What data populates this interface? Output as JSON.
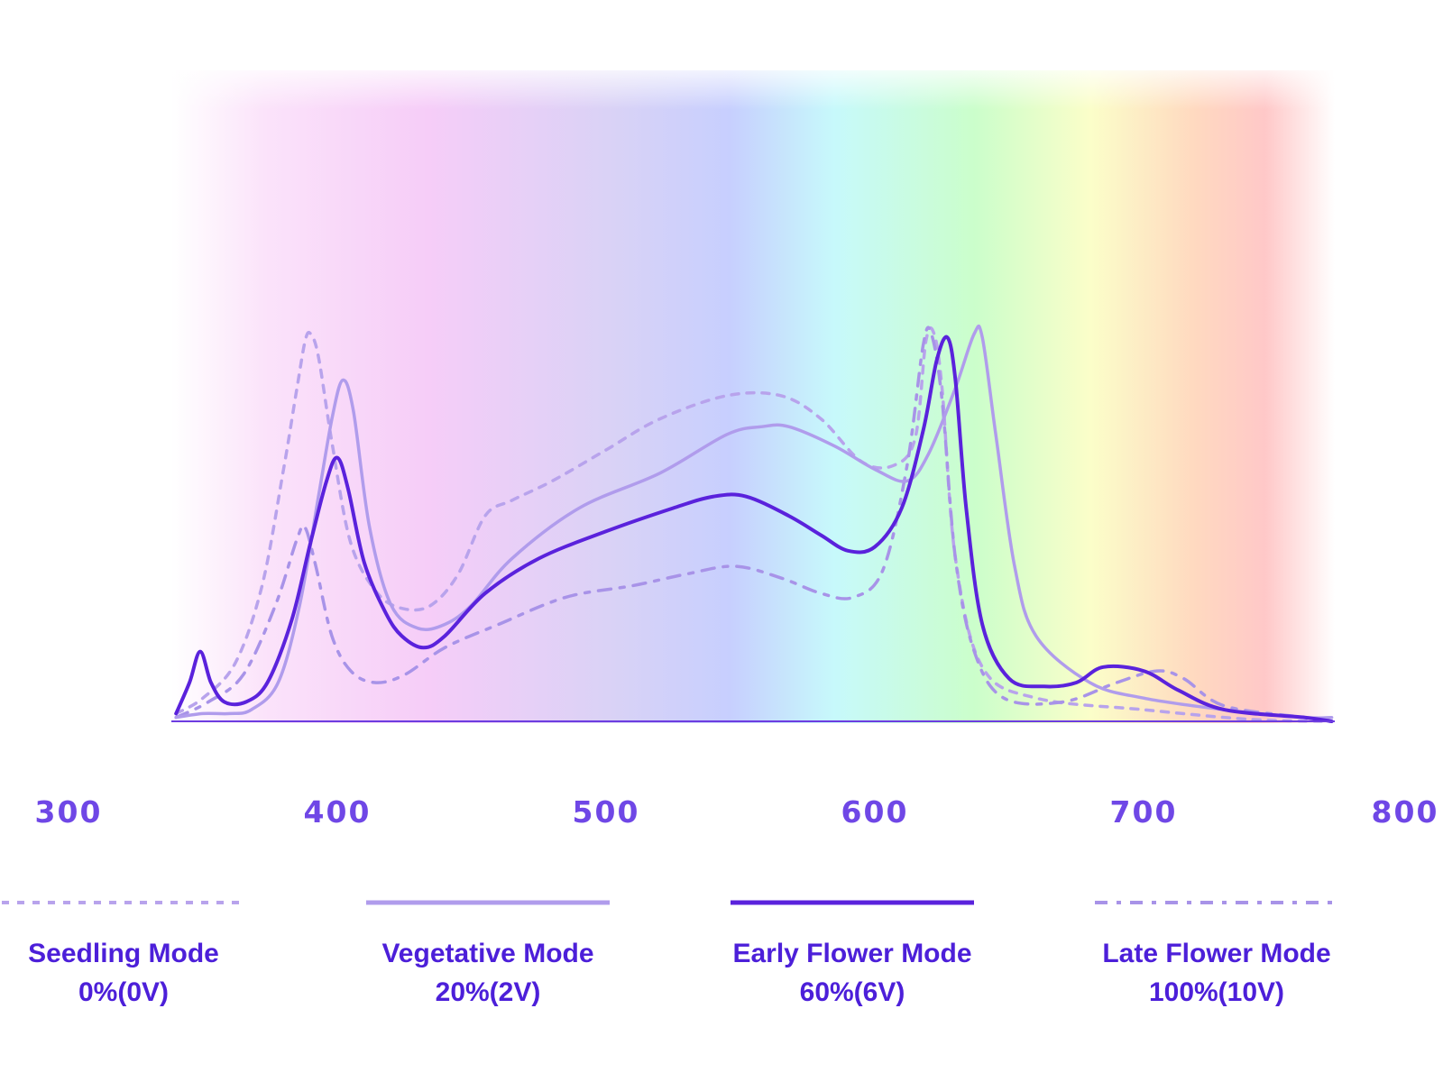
{
  "chart_data": {
    "type": "line",
    "title": "",
    "xlabel": "",
    "ylabel": "",
    "xlim": [
      300,
      800
    ],
    "ylim": [
      0,
      1.0
    ],
    "grid": false,
    "legend_position": "bottom",
    "x_ticks": [
      "300",
      "400",
      "500",
      "600",
      "700",
      "800"
    ],
    "series": [
      {
        "name": "Seedling Mode",
        "level": "0%(0V)",
        "color": "#b8a3ec",
        "style": "dotted",
        "points": [
          [
            340,
            0.02
          ],
          [
            350,
            0.06
          ],
          [
            362,
            0.15
          ],
          [
            372,
            0.35
          ],
          [
            380,
            0.65
          ],
          [
            385,
            0.86
          ],
          [
            388,
            0.98
          ],
          [
            390,
            1.0
          ],
          [
            393,
            0.94
          ],
          [
            398,
            0.72
          ],
          [
            405,
            0.46
          ],
          [
            415,
            0.33
          ],
          [
            425,
            0.29
          ],
          [
            435,
            0.3
          ],
          [
            445,
            0.38
          ],
          [
            455,
            0.53
          ],
          [
            465,
            0.57
          ],
          [
            480,
            0.62
          ],
          [
            500,
            0.7
          ],
          [
            520,
            0.78
          ],
          [
            545,
            0.84
          ],
          [
            565,
            0.84
          ],
          [
            580,
            0.78
          ],
          [
            595,
            0.67
          ],
          [
            607,
            0.66
          ],
          [
            615,
            0.73
          ],
          [
            619,
            0.98
          ],
          [
            622,
            1.0
          ],
          [
            625,
            0.86
          ],
          [
            630,
            0.42
          ],
          [
            640,
            0.14
          ],
          [
            660,
            0.06
          ],
          [
            700,
            0.03
          ],
          [
            740,
            0.005
          ],
          [
            770,
            0.0
          ]
        ]
      },
      {
        "name": "Vegetative Mode",
        "level": "20%(2V)",
        "color": "#b09cec",
        "style": "solid",
        "points": [
          [
            340,
            0.01
          ],
          [
            350,
            0.02
          ],
          [
            360,
            0.02
          ],
          [
            368,
            0.03
          ],
          [
            378,
            0.1
          ],
          [
            386,
            0.3
          ],
          [
            393,
            0.58
          ],
          [
            398,
            0.78
          ],
          [
            402,
            0.88
          ],
          [
            406,
            0.8
          ],
          [
            412,
            0.5
          ],
          [
            420,
            0.3
          ],
          [
            430,
            0.24
          ],
          [
            440,
            0.25
          ],
          [
            450,
            0.3
          ],
          [
            465,
            0.42
          ],
          [
            490,
            0.55
          ],
          [
            520,
            0.64
          ],
          [
            545,
            0.74
          ],
          [
            558,
            0.76
          ],
          [
            568,
            0.76
          ],
          [
            585,
            0.71
          ],
          [
            600,
            0.65
          ],
          [
            612,
            0.62
          ],
          [
            620,
            0.69
          ],
          [
            630,
            0.86
          ],
          [
            637,
            1.0
          ],
          [
            640,
            0.99
          ],
          [
            645,
            0.74
          ],
          [
            652,
            0.4
          ],
          [
            660,
            0.22
          ],
          [
            680,
            0.1
          ],
          [
            700,
            0.06
          ],
          [
            730,
            0.03
          ],
          [
            760,
            0.01
          ],
          [
            770,
            0.01
          ]
        ]
      },
      {
        "name": "Early Flower Mode",
        "level": "60%(6V)",
        "color": "#5a22dc",
        "style": "solid",
        "points": [
          [
            340,
            0.02
          ],
          [
            345,
            0.1
          ],
          [
            349,
            0.18
          ],
          [
            353,
            0.1
          ],
          [
            358,
            0.05
          ],
          [
            366,
            0.05
          ],
          [
            374,
            0.1
          ],
          [
            383,
            0.26
          ],
          [
            390,
            0.46
          ],
          [
            396,
            0.62
          ],
          [
            400,
            0.68
          ],
          [
            404,
            0.6
          ],
          [
            410,
            0.41
          ],
          [
            418,
            0.28
          ],
          [
            424,
            0.22
          ],
          [
            432,
            0.19
          ],
          [
            440,
            0.22
          ],
          [
            455,
            0.33
          ],
          [
            475,
            0.42
          ],
          [
            500,
            0.49
          ],
          [
            525,
            0.55
          ],
          [
            540,
            0.58
          ],
          [
            552,
            0.58
          ],
          [
            568,
            0.53
          ],
          [
            580,
            0.48
          ],
          [
            590,
            0.44
          ],
          [
            600,
            0.45
          ],
          [
            610,
            0.55
          ],
          [
            618,
            0.75
          ],
          [
            623,
            0.93
          ],
          [
            627,
            0.99
          ],
          [
            630,
            0.88
          ],
          [
            634,
            0.55
          ],
          [
            640,
            0.25
          ],
          [
            650,
            0.11
          ],
          [
            663,
            0.09
          ],
          [
            675,
            0.1
          ],
          [
            685,
            0.14
          ],
          [
            700,
            0.13
          ],
          [
            713,
            0.08
          ],
          [
            730,
            0.03
          ],
          [
            760,
            0.01
          ],
          [
            770,
            0.0
          ]
        ]
      },
      {
        "name": "Late Flower Mode",
        "level": "100%(10V)",
        "color": "#a893e8",
        "style": "dashdot",
        "points": [
          [
            340,
            0.01
          ],
          [
            352,
            0.05
          ],
          [
            365,
            0.12
          ],
          [
            377,
            0.3
          ],
          [
            385,
            0.47
          ],
          [
            388,
            0.5
          ],
          [
            392,
            0.4
          ],
          [
            398,
            0.22
          ],
          [
            405,
            0.13
          ],
          [
            414,
            0.1
          ],
          [
            425,
            0.12
          ],
          [
            440,
            0.19
          ],
          [
            460,
            0.25
          ],
          [
            485,
            0.32
          ],
          [
            510,
            0.35
          ],
          [
            530,
            0.38
          ],
          [
            548,
            0.4
          ],
          [
            565,
            0.37
          ],
          [
            580,
            0.33
          ],
          [
            592,
            0.32
          ],
          [
            603,
            0.39
          ],
          [
            612,
            0.66
          ],
          [
            618,
            0.97
          ],
          [
            621,
            1.0
          ],
          [
            625,
            0.83
          ],
          [
            630,
            0.42
          ],
          [
            637,
            0.18
          ],
          [
            648,
            0.06
          ],
          [
            670,
            0.05
          ],
          [
            690,
            0.1
          ],
          [
            705,
            0.13
          ],
          [
            715,
            0.11
          ],
          [
            730,
            0.04
          ],
          [
            760,
            0.01
          ],
          [
            770,
            0.0
          ]
        ]
      }
    ]
  }
}
